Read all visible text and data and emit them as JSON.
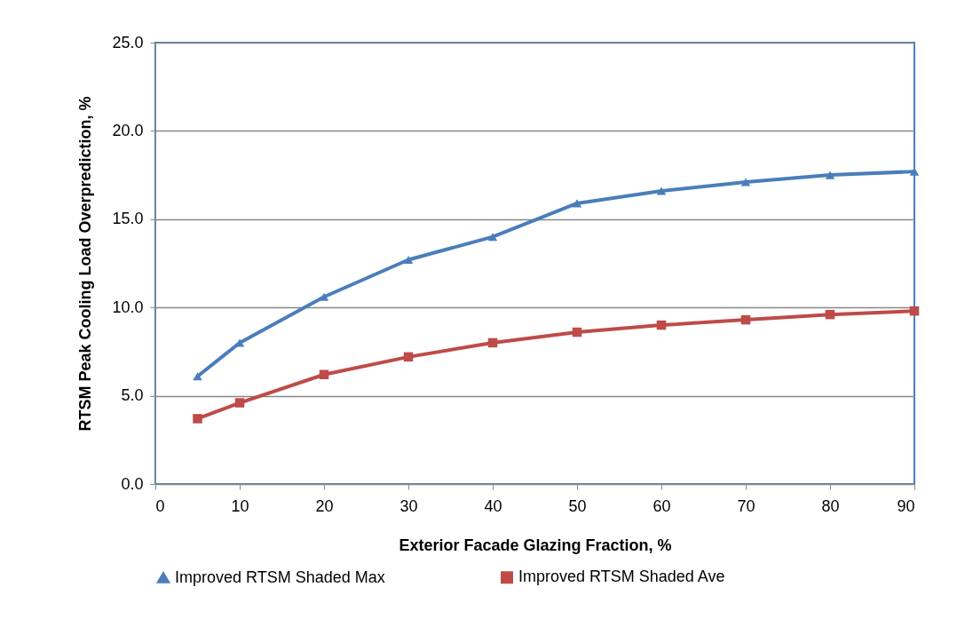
{
  "chart_data": {
    "type": "line",
    "xlabel": "Exterior Facade Glazing Fraction, %",
    "ylabel": "RTSM Peak Cooling Load Overprediction, %",
    "x": [
      5,
      10,
      20,
      30,
      40,
      50,
      60,
      70,
      80,
      90
    ],
    "xlim": [
      0,
      90
    ],
    "xticks": [
      0,
      10,
      20,
      30,
      40,
      50,
      60,
      70,
      80,
      90
    ],
    "ylim": [
      0,
      25
    ],
    "yticks": [
      {
        "value": 0,
        "label": "0.0"
      },
      {
        "value": 5,
        "label": "5.0"
      },
      {
        "value": 10,
        "label": "10.0"
      },
      {
        "value": 15,
        "label": "15.0"
      },
      {
        "value": 20,
        "label": "20.0"
      },
      {
        "value": 25,
        "label": "25.0"
      }
    ],
    "grid": "y",
    "legend": "bottom",
    "line_style": "solid",
    "series": [
      {
        "name": "Improved RTSM  Shaded Max",
        "color": "#4a7ebb",
        "marker": "triangle",
        "values": [
          6.1,
          8.0,
          10.6,
          12.7,
          14.0,
          15.9,
          16.6,
          17.1,
          17.5,
          17.7
        ]
      },
      {
        "name": "Improved RTSM  Shaded Ave",
        "color": "#be4b48",
        "marker": "square",
        "values": [
          3.7,
          4.6,
          6.2,
          7.2,
          8.0,
          8.6,
          9.0,
          9.3,
          9.6,
          9.8
        ]
      }
    ]
  }
}
